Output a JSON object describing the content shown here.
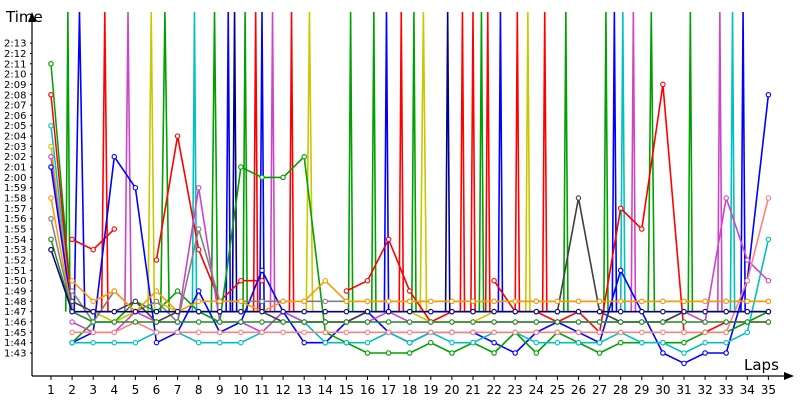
{
  "chart_data": {
    "type": "line",
    "ylabel": "Time",
    "xlabel": "Laps",
    "x_ticks": [
      "1",
      "2",
      "3",
      "4",
      "5",
      "6",
      "7",
      "8",
      "9",
      "10",
      "11",
      "12",
      "13",
      "14",
      "15",
      "16",
      "17",
      "18",
      "19",
      "20",
      "21",
      "22",
      "23",
      "24",
      "25",
      "26",
      "27",
      "28",
      "29",
      "30",
      "31",
      "32",
      "33",
      "34",
      "35"
    ],
    "y_ticks": [
      "1:43",
      "1:44",
      "1:45",
      "1:46",
      "1:47",
      "1:48",
      "1:49",
      "1:50",
      "1:51",
      "1:52",
      "1:53",
      "1:54",
      "1:55",
      "1:56",
      "1:57",
      "1:58",
      "1:59",
      "2:00",
      "2:01",
      "2:02",
      "2:03",
      "2:04",
      "2:05",
      "2:06",
      "2:07",
      "2:08",
      "2:09",
      "2:10",
      "2:11",
      "2:12",
      "2:13"
    ],
    "ylim_seconds": [
      102,
      134
    ],
    "xlim": [
      0,
      35.5
    ],
    "grid": false,
    "series": [
      {
        "color": "#ff0000",
        "values": [
          null,
          114,
          113,
          115,
          null,
          112,
          124,
          113,
          108,
          110,
          110,
          null,
          null,
          null,
          109,
          110,
          114,
          109,
          106,
          107,
          null,
          110,
          107,
          107,
          106,
          107,
          105,
          117,
          115,
          129,
          105,
          105,
          106,
          106,
          106
        ]
      },
      {
        "color": "#0000ff",
        "values": [
          null,
          104,
          105,
          122,
          119,
          104,
          105,
          109,
          105,
          106,
          111,
          107,
          104,
          104,
          106,
          107,
          105,
          104,
          105,
          105,
          105,
          104,
          103,
          105,
          106,
          105,
          104,
          111,
          107,
          103,
          102,
          103,
          103,
          110,
          128
        ]
      },
      {
        "color": "#00a000",
        "values": [
          null,
          104,
          106,
          106,
          108,
          107,
          109,
          107,
          106,
          121,
          120,
          120,
          122,
          105,
          104,
          103,
          103,
          103,
          104,
          103,
          104,
          103,
          105,
          103,
          105,
          104,
          103,
          104,
          104,
          104,
          104,
          105,
          105,
          106,
          107
        ]
      },
      {
        "color": "#00c0c0",
        "values": [
          null,
          104,
          104,
          104,
          104,
          105,
          105,
          104,
          104,
          104,
          105,
          107,
          106,
          104,
          104,
          104,
          105,
          104,
          105,
          104,
          104,
          105,
          105,
          104,
          104,
          104,
          104,
          105,
          104,
          104,
          103,
          104,
          104,
          105,
          114
        ]
      },
      {
        "color": "#cc44cc",
        "values": [
          null,
          106,
          105,
          105,
          107,
          106,
          106,
          119,
          106,
          106,
          105,
          107,
          106,
          106,
          106,
          106,
          107,
          106,
          106,
          106,
          106,
          106,
          106,
          106,
          106,
          106,
          106,
          106,
          106,
          106,
          107,
          106,
          118,
          112,
          110
        ]
      },
      {
        "color": "#c8c800",
        "values": [
          null,
          107,
          107,
          106,
          107,
          108,
          107,
          107,
          107,
          107,
          107,
          107,
          107,
          107,
          107,
          107,
          107,
          107,
          106,
          106,
          106,
          107,
          107,
          107,
          107,
          107,
          107,
          107,
          107,
          107,
          107,
          107,
          107,
          107,
          107
        ]
      },
      {
        "color": "#808080",
        "values": [
          null,
          109,
          106,
          109,
          107,
          108,
          106,
          115,
          108,
          108,
          108,
          108,
          108,
          108,
          108,
          108,
          108,
          108,
          108,
          108,
          108,
          108,
          108,
          108,
          108,
          108,
          108,
          108,
          108,
          108,
          108,
          108,
          108,
          108,
          108
        ]
      },
      {
        "color": "#404040",
        "values": [
          null,
          108,
          107,
          107,
          108,
          106,
          107,
          107,
          107,
          107,
          107,
          106,
          106,
          106,
          106,
          107,
          107,
          107,
          107,
          107,
          107,
          107,
          107,
          107,
          107,
          118,
          107,
          106,
          106,
          106,
          107,
          107,
          107,
          107,
          107
        ]
      },
      {
        "color": "#ff8080",
        "values": [
          null,
          105,
          105,
          105,
          106,
          105,
          105,
          105,
          105,
          105,
          105,
          105,
          105,
          105,
          105,
          105,
          105,
          105,
          105,
          105,
          105,
          105,
          105,
          105,
          105,
          105,
          105,
          105,
          105,
          105,
          105,
          105,
          105,
          110,
          118
        ]
      },
      {
        "color": "#ff9900",
        "values": [
          null,
          110,
          108,
          109,
          107,
          109,
          107,
          108,
          108,
          108,
          107,
          108,
          108,
          110,
          108,
          108,
          108,
          108,
          108,
          108,
          108,
          108,
          108,
          108,
          108,
          108,
          108,
          108,
          108,
          108,
          108,
          108,
          108,
          108,
          108
        ]
      },
      {
        "color": "#228b22",
        "values": [
          null,
          107,
          106,
          106,
          106,
          106,
          106,
          106,
          106,
          106,
          106,
          106,
          106,
          106,
          106,
          106,
          106,
          106,
          106,
          106,
          106,
          106,
          106,
          106,
          106,
          106,
          106,
          106,
          106,
          106,
          106,
          106,
          106,
          106,
          106
        ]
      },
      {
        "color": "#00008b",
        "values": [
          null,
          107,
          107,
          107,
          107,
          107,
          107,
          107,
          107,
          107,
          107,
          107,
          107,
          107,
          107,
          107,
          107,
          107,
          107,
          107,
          107,
          107,
          107,
          107,
          107,
          107,
          107,
          107,
          107,
          107,
          107,
          107,
          107,
          107,
          107
        ]
      }
    ],
    "spikes": [
      {
        "color": "#00a000",
        "from_lap": 1.7,
        "to_lap": 1.9
      },
      {
        "color": "#0000ff",
        "from_lap": 2.1,
        "to_lap": 2.6
      },
      {
        "color": "#ff0000",
        "from_lap": 3.4,
        "to_lap": 3.7
      },
      {
        "color": "#cc44cc",
        "from_lap": 4.5,
        "to_lap": 4.8
      },
      {
        "color": "#c8c800",
        "from_lap": 5.6,
        "to_lap": 5.9
      },
      {
        "color": "#00a000",
        "from_lap": 6.2,
        "to_lap": 6.6
      },
      {
        "color": "#00c0c0",
        "from_lap": 7.7,
        "to_lap": 7.9
      },
      {
        "color": "#00a000",
        "from_lap": 8.6,
        "to_lap": 8.9
      },
      {
        "color": "#0000ff",
        "from_lap": 9.3,
        "to_lap": 9.5
      },
      {
        "color": "#00008b",
        "from_lap": 9.6,
        "to_lap": 9.8
      },
      {
        "color": "#00a000",
        "from_lap": 10.1,
        "to_lap": 10.3
      },
      {
        "color": "#ff0000",
        "from_lap": 10.6,
        "to_lap": 10.8
      },
      {
        "color": "#0000ff",
        "from_lap": 10.9,
        "to_lap": 11.1
      },
      {
        "color": "#cc44cc",
        "from_lap": 11.4,
        "to_lap": 11.6
      },
      {
        "color": "#ff0000",
        "from_lap": 12.3,
        "to_lap": 12.5
      },
      {
        "color": "#c8c800",
        "from_lap": 13.1,
        "to_lap": 13.4
      },
      {
        "color": "#00a000",
        "from_lap": 15.1,
        "to_lap": 15.3
      },
      {
        "color": "#00a000",
        "from_lap": 16.2,
        "to_lap": 16.4
      },
      {
        "color": "#0000ff",
        "from_lap": 16.8,
        "to_lap": 17.0
      },
      {
        "color": "#ff0000",
        "from_lap": 17.5,
        "to_lap": 17.7
      },
      {
        "color": "#00a000",
        "from_lap": 18.1,
        "to_lap": 18.3
      },
      {
        "color": "#c8c800",
        "from_lap": 18.5,
        "to_lap": 18.8
      },
      {
        "color": "#00008b",
        "from_lap": 19.7,
        "to_lap": 19.9
      },
      {
        "color": "#ff0000",
        "from_lap": 20.4,
        "to_lap": 20.6
      },
      {
        "color": "#ff0000",
        "from_lap": 20.9,
        "to_lap": 21.1
      },
      {
        "color": "#00a000",
        "from_lap": 21.3,
        "to_lap": 21.5
      },
      {
        "color": "#ff0000",
        "from_lap": 21.6,
        "to_lap": 21.8
      },
      {
        "color": "#0000ff",
        "from_lap": 22.2,
        "to_lap": 22.4
      },
      {
        "color": "#ff0000",
        "from_lap": 23.0,
        "to_lap": 23.2
      },
      {
        "color": "#c8c800",
        "from_lap": 23.5,
        "to_lap": 23.7
      },
      {
        "color": "#ff0000",
        "from_lap": 24.3,
        "to_lap": 24.5
      },
      {
        "color": "#00a000",
        "from_lap": 25.3,
        "to_lap": 25.5
      },
      {
        "color": "#00a000",
        "from_lap": 27.2,
        "to_lap": 27.4
      },
      {
        "color": "#0000ff",
        "from_lap": 27.6,
        "to_lap": 27.8
      },
      {
        "color": "#00c0c0",
        "from_lap": 28.0,
        "to_lap": 28.2
      },
      {
        "color": "#cc44cc",
        "from_lap": 28.5,
        "to_lap": 28.7
      },
      {
        "color": "#00a000",
        "from_lap": 29.3,
        "to_lap": 29.6
      },
      {
        "color": "#00a000",
        "from_lap": 31.2,
        "to_lap": 31.4
      },
      {
        "color": "#cc44cc",
        "from_lap": 32.6,
        "to_lap": 32.8
      },
      {
        "color": "#00c0c0",
        "from_lap": 33.2,
        "to_lap": 33.4
      },
      {
        "color": "#0000ff",
        "from_lap": 33.7,
        "to_lap": 33.9
      }
    ],
    "starts": [
      {
        "color": "#00a000",
        "value": 131
      },
      {
        "color": "#00c0c0",
        "value": 125
      },
      {
        "color": "#ff0000",
        "value": 128
      },
      {
        "color": "#c8c800",
        "value": 123
      },
      {
        "color": "#cc44cc",
        "value": 122
      },
      {
        "color": "#0000ff",
        "value": 121
      },
      {
        "color": "#ff9900",
        "value": 118
      },
      {
        "color": "#808080",
        "value": 116
      },
      {
        "color": "#228b22",
        "value": 114
      },
      {
        "color": "#00008b",
        "value": 113
      }
    ]
  }
}
